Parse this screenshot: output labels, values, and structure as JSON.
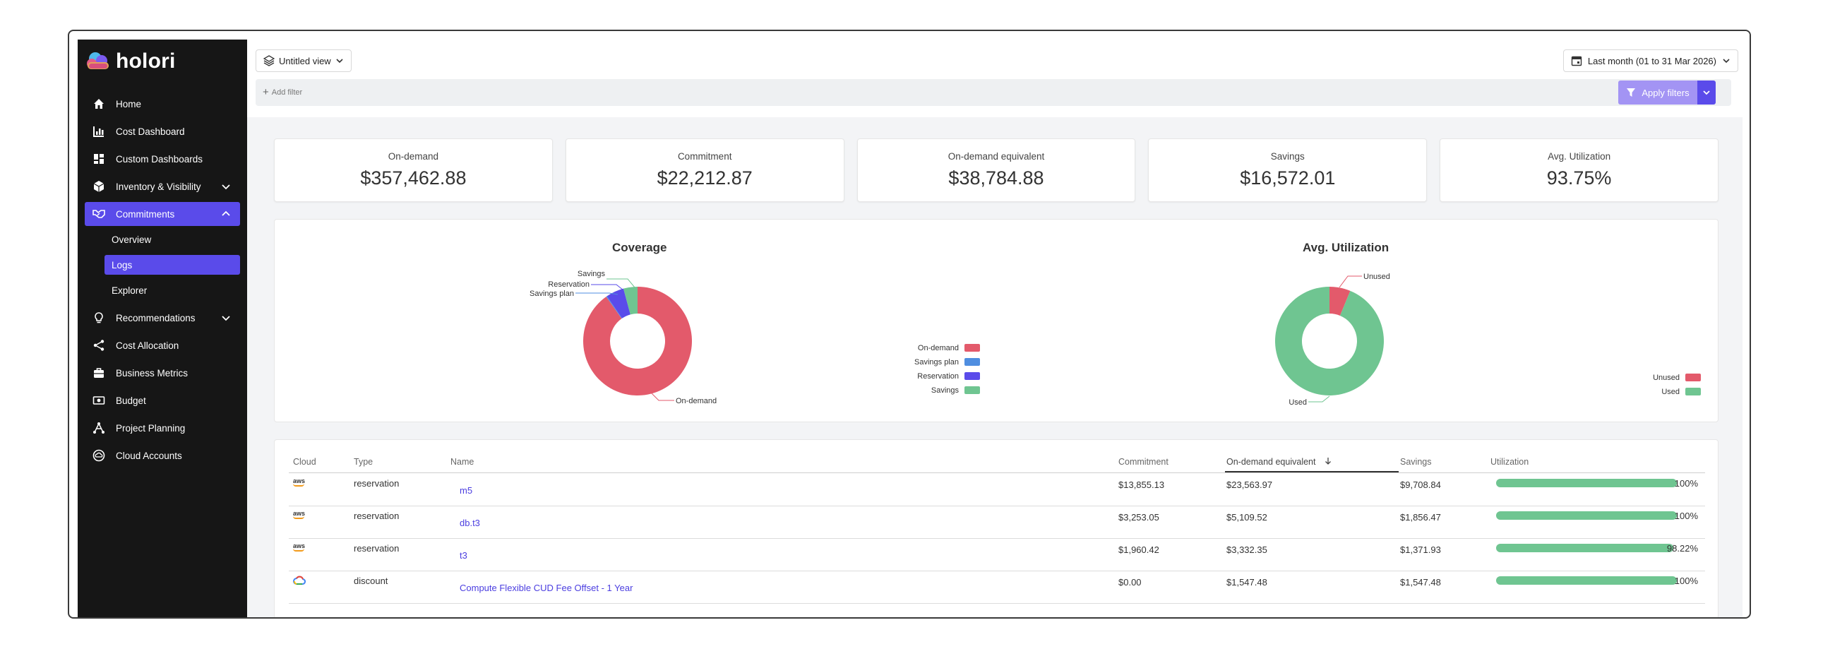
{
  "app": {
    "logo_text": "holori"
  },
  "sidebar": {
    "items": [
      {
        "label": "Home",
        "icon": "home-icon"
      },
      {
        "label": "Cost Dashboard",
        "icon": "bar-chart-icon"
      },
      {
        "label": "Custom Dashboards",
        "icon": "dashboard-icon"
      },
      {
        "label": "Inventory & Visibility",
        "icon": "box-icon"
      },
      {
        "label": "Commitments",
        "icon": "handshake-icon",
        "active": true
      },
      {
        "label": "Recommendations",
        "icon": "lightbulb-icon"
      },
      {
        "label": "Cost Allocation",
        "icon": "share-icon"
      },
      {
        "label": "Business Metrics",
        "icon": "briefcase-icon"
      },
      {
        "label": "Budget",
        "icon": "money-icon"
      },
      {
        "label": "Project Planning",
        "icon": "hierarchy-icon"
      },
      {
        "label": "Cloud Accounts",
        "icon": "cloud-account-icon"
      }
    ],
    "sub_items": [
      {
        "label": "Overview"
      },
      {
        "label": "Logs",
        "active": true
      },
      {
        "label": "Explorer"
      }
    ]
  },
  "toolbar": {
    "view_label": "Untitled view",
    "date_label": "Last month (01 to 31 Mar 2026)",
    "add_filter_label": "Add filter",
    "apply_label": "Apply filters"
  },
  "kpis": [
    {
      "label": "On-demand",
      "value": "$357,462.88"
    },
    {
      "label": "Commitment",
      "value": "$22,212.87"
    },
    {
      "label": "On-demand equivalent",
      "value": "$38,784.88"
    },
    {
      "label": "Savings",
      "value": "$16,572.01"
    },
    {
      "label": "Avg. Utilization",
      "value": "93.75%"
    }
  ],
  "colors": {
    "accent": "#5a4bea",
    "on_demand": "#e35a6b",
    "savings_plan": "#4f8ee0",
    "reservation": "#5a4bea",
    "savings": "#6fc591",
    "sidebar_bg": "#161616"
  },
  "chart_data": [
    {
      "type": "pie",
      "title": "Coverage",
      "categories": [
        "On-demand",
        "Savings plan",
        "Reservation",
        "Savings"
      ],
      "values": [
        357462.88,
        1000,
        21212.87,
        16572.01
      ],
      "legend": "right",
      "callouts": [
        "Savings",
        "Reservation",
        "Savings plan",
        "On-demand"
      ]
    },
    {
      "type": "pie",
      "title": "Avg. Utilization",
      "categories": [
        "Unused",
        "Used"
      ],
      "values": [
        6.25,
        93.75
      ],
      "legend": "bottom-right",
      "callouts": [
        "Unused",
        "Used"
      ]
    }
  ],
  "table": {
    "columns": [
      "Cloud",
      "Type",
      "Name",
      "Commitment",
      "On-demand equivalent",
      "Savings",
      "Utilization"
    ],
    "rows": [
      {
        "cloud": "aws",
        "type": "reservation",
        "name": "m5",
        "commitment": "$13,855.13",
        "on_demand_equivalent": "$23,563.97",
        "savings": "$9,708.84",
        "utilization": "100%",
        "utilization_value": 1.0
      },
      {
        "cloud": "aws",
        "type": "reservation",
        "name": "db.t3",
        "commitment": "$3,253.05",
        "on_demand_equivalent": "$5,109.52",
        "savings": "$1,856.47",
        "utilization": "100%",
        "utilization_value": 1.0
      },
      {
        "cloud": "aws",
        "type": "reservation",
        "name": "t3",
        "commitment": "$1,960.42",
        "on_demand_equivalent": "$3,332.35",
        "savings": "$1,371.93",
        "utilization": "98.22%",
        "utilization_value": 0.9822
      },
      {
        "cloud": "gcp",
        "type": "discount",
        "name": "Compute Flexible CUD Fee Offset - 1 Year",
        "commitment": "$0.00",
        "on_demand_equivalent": "$1,547.48",
        "savings": "$1,547.48",
        "utilization": "100%",
        "utilization_value": 1.0
      }
    ]
  }
}
